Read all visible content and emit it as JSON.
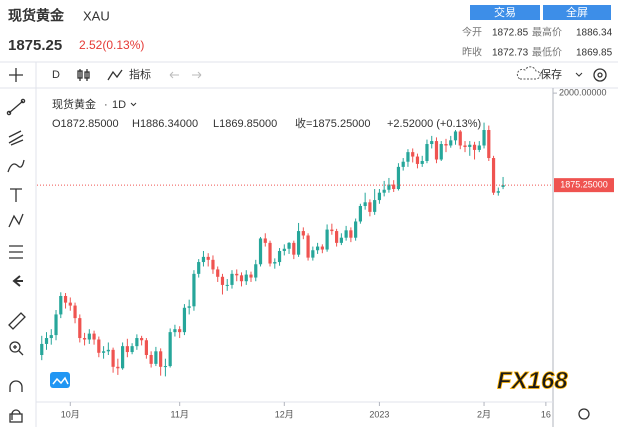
{
  "header": {
    "title": "现货黄金",
    "symbol": "XAU",
    "button_trade": "交易",
    "button_fullscreen": "全屏",
    "price": "1875.25",
    "change": "2.52(0.13%)",
    "open_label": "今开",
    "open_value": "1872.85",
    "high_label": "最高价",
    "high_value": "1886.34",
    "prev_close_label": "昨收",
    "prev_close_value": "1872.73",
    "low_label": "最低价",
    "low_value": "1869.85"
  },
  "toolbar": {
    "interval": "D",
    "indicators": "指标",
    "save": "保存"
  },
  "legend": {
    "name": "现货黄金",
    "interval": "1D",
    "open": "O1872.85000",
    "high": "H1886.34000",
    "low": "L1869.85000",
    "close": "收=1875.25000",
    "change": "+2.52000 (+0.13%)"
  },
  "watermark": "FX168",
  "chart_data": {
    "type": "candlestick",
    "up_color": "#26a69a",
    "down_color": "#ef5350",
    "x": [
      1,
      2,
      3,
      4,
      5,
      6,
      7,
      8,
      9,
      10,
      11,
      12,
      13,
      14,
      15,
      16,
      17,
      18,
      19,
      20,
      21,
      22,
      23,
      24,
      25,
      26,
      27,
      28,
      29,
      30,
      31,
      32,
      33,
      34,
      35,
      36,
      37,
      38,
      39,
      40,
      41,
      42,
      43,
      44,
      45,
      46,
      47,
      48,
      49,
      50,
      51,
      52,
      53,
      54,
      55,
      56,
      57,
      58,
      59,
      60,
      61,
      62,
      63,
      64,
      65,
      66,
      67,
      68,
      69,
      70,
      71,
      72,
      73,
      74,
      75,
      76,
      77,
      78,
      79,
      80,
      81,
      82,
      83,
      84,
      85,
      86,
      87,
      88,
      89,
      90,
      91,
      92,
      93,
      94,
      95,
      96,
      97,
      98
    ],
    "ohlc": [
      [
        1645,
        1671,
        1638,
        1660
      ],
      [
        1660,
        1676,
        1652,
        1668
      ],
      [
        1668,
        1680,
        1659,
        1672
      ],
      [
        1672,
        1706,
        1665,
        1700
      ],
      [
        1700,
        1730,
        1695,
        1725
      ],
      [
        1725,
        1729,
        1708,
        1716
      ],
      [
        1716,
        1723,
        1705,
        1712
      ],
      [
        1712,
        1716,
        1688,
        1695
      ],
      [
        1695,
        1700,
        1662,
        1668
      ],
      [
        1668,
        1675,
        1658,
        1666
      ],
      [
        1666,
        1680,
        1660,
        1674
      ],
      [
        1674,
        1678,
        1659,
        1666
      ],
      [
        1666,
        1670,
        1642,
        1648
      ],
      [
        1648,
        1657,
        1640,
        1650
      ],
      [
        1650,
        1662,
        1645,
        1652
      ],
      [
        1652,
        1655,
        1621,
        1629
      ],
      [
        1629,
        1640,
        1618,
        1627
      ],
      [
        1627,
        1662,
        1625,
        1657
      ],
      [
        1657,
        1667,
        1642,
        1649
      ],
      [
        1649,
        1661,
        1646,
        1657
      ],
      [
        1657,
        1673,
        1652,
        1668
      ],
      [
        1668,
        1671,
        1658,
        1665
      ],
      [
        1665,
        1668,
        1640,
        1645
      ],
      [
        1645,
        1650,
        1628,
        1633
      ],
      [
        1633,
        1656,
        1630,
        1650
      ],
      [
        1650,
        1654,
        1617,
        1629
      ],
      [
        1629,
        1640,
        1616,
        1630
      ],
      [
        1630,
        1681,
        1628,
        1676
      ],
      [
        1676,
        1686,
        1670,
        1680
      ],
      [
        1680,
        1684,
        1668,
        1676
      ],
      [
        1676,
        1714,
        1672,
        1709
      ],
      [
        1709,
        1720,
        1700,
        1711
      ],
      [
        1711,
        1760,
        1705,
        1755
      ],
      [
        1755,
        1775,
        1750,
        1771
      ],
      [
        1771,
        1786,
        1765,
        1778
      ],
      [
        1778,
        1783,
        1765,
        1774
      ],
      [
        1774,
        1780,
        1755,
        1761
      ],
      [
        1761,
        1765,
        1744,
        1751
      ],
      [
        1751,
        1755,
        1727,
        1740
      ],
      [
        1740,
        1748,
        1732,
        1740
      ],
      [
        1740,
        1760,
        1735,
        1755
      ],
      [
        1755,
        1761,
        1745,
        1753
      ],
      [
        1753,
        1757,
        1738,
        1745
      ],
      [
        1745,
        1760,
        1740,
        1754
      ],
      [
        1754,
        1758,
        1744,
        1750
      ],
      [
        1750,
        1774,
        1745,
        1768
      ],
      [
        1768,
        1805,
        1765,
        1803
      ],
      [
        1803,
        1810,
        1792,
        1797
      ],
      [
        1797,
        1800,
        1765,
        1769
      ],
      [
        1769,
        1776,
        1762,
        1771
      ],
      [
        1771,
        1790,
        1766,
        1786
      ],
      [
        1786,
        1795,
        1780,
        1789
      ],
      [
        1789,
        1798,
        1782,
        1797
      ],
      [
        1797,
        1800,
        1775,
        1781
      ],
      [
        1781,
        1824,
        1778,
        1813
      ],
      [
        1813,
        1818,
        1802,
        1807
      ],
      [
        1807,
        1810,
        1773,
        1777
      ],
      [
        1777,
        1792,
        1773,
        1787
      ],
      [
        1787,
        1797,
        1782,
        1792
      ],
      [
        1792,
        1795,
        1783,
        1788
      ],
      [
        1788,
        1822,
        1785,
        1815
      ],
      [
        1815,
        1823,
        1808,
        1813
      ],
      [
        1813,
        1816,
        1792,
        1797
      ],
      [
        1797,
        1810,
        1794,
        1804
      ],
      [
        1804,
        1820,
        1800,
        1814
      ],
      [
        1814,
        1818,
        1798,
        1804
      ],
      [
        1804,
        1830,
        1800,
        1826
      ],
      [
        1826,
        1850,
        1823,
        1847
      ],
      [
        1847,
        1865,
        1842,
        1852
      ],
      [
        1852,
        1856,
        1833,
        1839
      ],
      [
        1839,
        1870,
        1835,
        1855
      ],
      [
        1855,
        1870,
        1850,
        1865
      ],
      [
        1865,
        1881,
        1860,
        1869
      ],
      [
        1869,
        1885,
        1865,
        1876
      ],
      [
        1876,
        1882,
        1866,
        1870
      ],
      [
        1870,
        1905,
        1868,
        1900
      ],
      [
        1900,
        1912,
        1895,
        1907
      ],
      [
        1907,
        1924,
        1900,
        1920
      ],
      [
        1920,
        1925,
        1906,
        1914
      ],
      [
        1914,
        1918,
        1898,
        1904
      ],
      [
        1904,
        1915,
        1900,
        1908
      ],
      [
        1908,
        1937,
        1905,
        1931
      ],
      [
        1931,
        1942,
        1925,
        1935
      ],
      [
        1935,
        1940,
        1905,
        1910
      ],
      [
        1910,
        1935,
        1908,
        1931
      ],
      [
        1931,
        1938,
        1920,
        1929
      ],
      [
        1929,
        1942,
        1926,
        1936
      ],
      [
        1936,
        1950,
        1930,
        1948
      ],
      [
        1948,
        1950,
        1924,
        1929
      ],
      [
        1929,
        1935,
        1920,
        1927
      ],
      [
        1927,
        1935,
        1915,
        1930
      ],
      [
        1930,
        1934,
        1910,
        1923
      ],
      [
        1923,
        1935,
        1920,
        1929
      ],
      [
        1929,
        1960,
        1925,
        1950
      ],
      [
        1950,
        1956,
        1908,
        1912
      ],
      [
        1912,
        1915,
        1862,
        1865
      ],
      [
        1865,
        1872,
        1861,
        1867
      ],
      [
        1872.85,
        1886.34,
        1869.85,
        1875.25
      ]
    ],
    "xlim": [
      0,
      108.5
    ],
    "xticks": [
      {
        "value": 7,
        "label": "10月"
      },
      {
        "value": 30,
        "label": "11月"
      },
      {
        "value": 52,
        "label": "12月"
      },
      {
        "value": 72,
        "label": "2023"
      },
      {
        "value": 94,
        "label": "2月"
      },
      {
        "value": 107,
        "label": "16"
      }
    ],
    "ylim": [
      1584,
      2011
    ],
    "yticks": [
      {
        "value": 2000,
        "label": "2000.00000"
      }
    ],
    "last_price": {
      "value": 1875.25,
      "label": "1875.25000"
    }
  }
}
